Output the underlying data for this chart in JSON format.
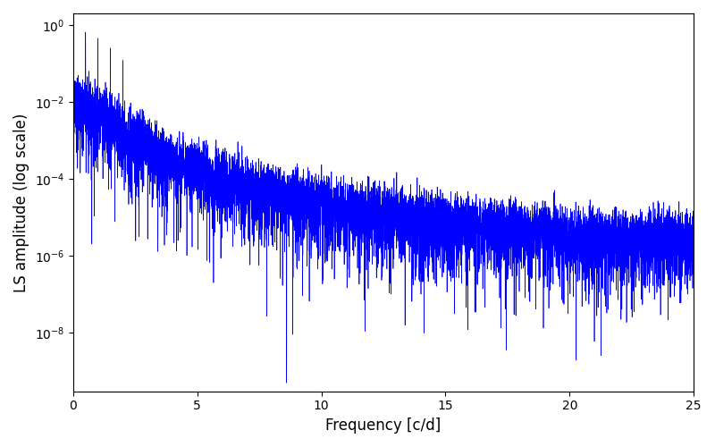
{
  "xlabel": "Frequency [c/d]",
  "ylabel": "LS amplitude (log scale)",
  "line_color": "#0000ff",
  "xlim": [
    0,
    25
  ],
  "ylim_bottom": 3e-10,
  "ylim_top": 2.0,
  "xticks": [
    0,
    5,
    10,
    15,
    20,
    25
  ],
  "figsize": [
    8.0,
    5.0
  ],
  "dpi": 100,
  "seed": 17,
  "n_points": 8000,
  "background_color": "#ffffff",
  "linewidth": 0.5,
  "f0": 1.2,
  "alpha": 2.8,
  "amplitude_scale": 0.012,
  "noise_floor": 4e-06,
  "deep_null_freq": 8.6,
  "deep_null_val": 5e-10
}
